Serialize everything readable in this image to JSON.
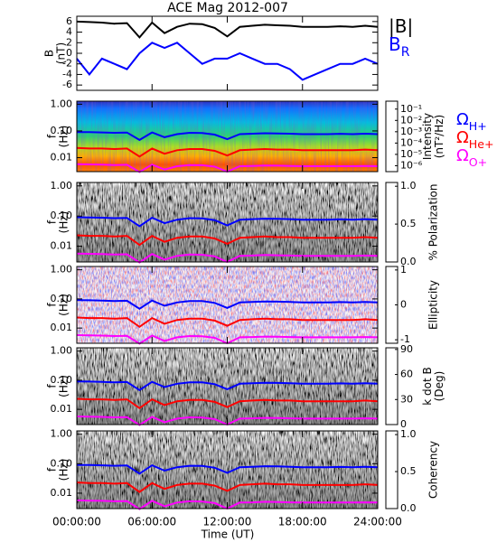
{
  "title": "ACE Mag 2012-007",
  "x_label": "Time (UT)",
  "chart_data": [
    {
      "type": "line",
      "y_label": [
        "B",
        "(nT)"
      ],
      "xlim": [
        0,
        24
      ],
      "ylim": [
        -7,
        7
      ],
      "yticks": [
        6,
        4,
        2,
        0,
        -2,
        -4,
        -6
      ],
      "x": [
        0,
        1,
        2,
        3,
        4,
        5,
        6,
        7,
        8,
        9,
        10,
        11,
        12,
        13,
        14,
        15,
        16,
        17,
        18,
        19,
        20,
        21,
        22,
        23,
        24
      ],
      "series": [
        {
          "name": "|B|",
          "color": "#000000",
          "values": [
            6.0,
            5.9,
            5.8,
            5.6,
            5.7,
            3.0,
            5.8,
            3.8,
            5.0,
            5.6,
            5.5,
            4.8,
            3.2,
            5.0,
            5.2,
            5.4,
            5.3,
            5.2,
            5.0,
            5.0,
            5.0,
            5.1,
            5.0,
            5.2,
            5.0
          ]
        },
        {
          "name": "B",
          "subscript": "R",
          "color": "#0000ff",
          "values": [
            -1,
            -4,
            -1,
            -2,
            -3,
            0,
            2,
            1,
            2,
            0,
            -2,
            -1,
            -1,
            0,
            -1,
            -2,
            -2,
            -3,
            -5,
            -4,
            -3,
            -2,
            -2,
            -1,
            -2
          ]
        }
      ]
    },
    {
      "type": "spectrogram",
      "y_label": [
        "f",
        "(Hz)"
      ],
      "log": true,
      "xlim": [
        0,
        24
      ],
      "ylim": [
        0.003,
        1.3
      ],
      "yticks": [
        {
          "value": 1,
          "label": "1.00"
        },
        {
          "value": 0.1,
          "label": "0.10"
        },
        {
          "value": 0.01,
          "label": "0.01"
        }
      ],
      "colorbar": {
        "label": [
          "Intensity",
          "(nT²/Hz)"
        ],
        "colormap": "rainbow",
        "log": true,
        "clim": [
          3e-07,
          0.5
        ],
        "ticks": [
          {
            "value": 0.1,
            "label": "10⁻¹"
          },
          {
            "value": 0.01,
            "label": "10⁻²"
          },
          {
            "value": 0.001,
            "label": "10⁻³"
          },
          {
            "value": 0.0001,
            "label": "10⁻⁴"
          },
          {
            "value": 1e-05,
            "label": "10⁻⁵"
          },
          {
            "value": 1e-06,
            "label": "10⁻⁶"
          }
        ]
      },
      "x": [
        0,
        1,
        2,
        3,
        4,
        5,
        6,
        7,
        8,
        9,
        10,
        11,
        12,
        13,
        14,
        15,
        16,
        17,
        18,
        19,
        20,
        21,
        22,
        23,
        24
      ],
      "series": [
        {
          "name": "Ω",
          "subscript": "H+",
          "color": "#0000ff",
          "values": [
            0.091,
            0.09,
            0.088,
            0.085,
            0.087,
            0.046,
            0.088,
            0.058,
            0.076,
            0.085,
            0.084,
            0.073,
            0.049,
            0.076,
            0.079,
            0.082,
            0.081,
            0.079,
            0.076,
            0.076,
            0.076,
            0.078,
            0.076,
            0.079,
            0.076
          ]
        },
        {
          "name": "Ω",
          "subscript": "He+",
          "color": "#ff0000",
          "values": [
            0.023,
            0.022,
            0.022,
            0.021,
            0.022,
            0.011,
            0.022,
            0.014,
            0.019,
            0.021,
            0.021,
            0.018,
            0.012,
            0.019,
            0.02,
            0.021,
            0.02,
            0.02,
            0.019,
            0.019,
            0.019,
            0.019,
            0.019,
            0.02,
            0.019
          ]
        },
        {
          "name": "Ω",
          "subscript": "O+",
          "color": "#ff00ff",
          "values": [
            0.0057,
            0.0056,
            0.0055,
            0.0053,
            0.0054,
            0.0029,
            0.0055,
            0.0036,
            0.0048,
            0.0053,
            0.0052,
            0.0046,
            0.003,
            0.0048,
            0.0049,
            0.0051,
            0.005,
            0.0049,
            0.0048,
            0.0048,
            0.0048,
            0.0048,
            0.0048,
            0.0049,
            0.0048
          ]
        }
      ]
    },
    {
      "type": "spectrogram",
      "y_label": [
        "f",
        "(Hz)"
      ],
      "log": true,
      "xlim": [
        0,
        24
      ],
      "ylim": [
        0.003,
        1.3
      ],
      "yticks": [
        {
          "value": 1,
          "label": "1.00"
        },
        {
          "value": 0.1,
          "label": "0.10"
        },
        {
          "value": 0.01,
          "label": "0.01"
        }
      ],
      "colorbar": {
        "label": [
          "% Polarization"
        ],
        "colormap": "gray_r",
        "log": false,
        "clim": [
          0,
          1.05
        ],
        "ticks": [
          {
            "value": 1,
            "label": "1.0"
          },
          {
            "value": 0.5,
            "label": "0.5"
          },
          {
            "value": 0,
            "label": "0.0"
          }
        ]
      }
    },
    {
      "type": "spectrogram",
      "y_label": [
        "f",
        "(Hz)"
      ],
      "log": true,
      "xlim": [
        0,
        24
      ],
      "ylim": [
        0.003,
        1.3
      ],
      "yticks": [
        {
          "value": 1,
          "label": "1.00"
        },
        {
          "value": 0.1,
          "label": "0.10"
        },
        {
          "value": 0.01,
          "label": "0.01"
        }
      ],
      "colorbar": {
        "label": [
          "Ellipticity"
        ],
        "colormap": "bwr",
        "log": false,
        "clim": [
          -1.1,
          1.1
        ],
        "ticks": [
          1,
          0,
          -1
        ]
      }
    },
    {
      "type": "spectrogram",
      "y_label": [
        "f",
        "(Hz)"
      ],
      "log": true,
      "xlim": [
        0,
        24
      ],
      "ylim": [
        0.003,
        1.3
      ],
      "yticks": [
        {
          "value": 1,
          "label": "1.00"
        },
        {
          "value": 0.1,
          "label": "0.10"
        },
        {
          "value": 0.01,
          "label": "0.01"
        }
      ],
      "colorbar": {
        "label": [
          "k dot B",
          "(Deg)"
        ],
        "colormap": "gray_r",
        "log": false,
        "clim": [
          0,
          92
        ],
        "ticks": [
          90,
          60,
          30,
          0
        ]
      }
    },
    {
      "type": "spectrogram",
      "y_label": [
        "f",
        "(Hz)"
      ],
      "log": true,
      "xlim": [
        0,
        24
      ],
      "ylim": [
        0.003,
        1.3
      ],
      "yticks": [
        {
          "value": 1,
          "label": "1.00"
        },
        {
          "value": 0.1,
          "label": "0.10"
        },
        {
          "value": 0.01,
          "label": "0.01"
        }
      ],
      "colorbar": {
        "label": [
          "Coherency"
        ],
        "colormap": "gray_r",
        "log": false,
        "clim": [
          0,
          1.05
        ],
        "ticks": [
          {
            "value": 1,
            "label": "1.0"
          },
          {
            "value": 0.5,
            "label": "0.5"
          },
          {
            "value": 0,
            "label": "0.0"
          }
        ]
      },
      "xticks": [
        {
          "value": 0,
          "label": "00:00:00"
        },
        {
          "value": 6,
          "label": "06:00:00"
        },
        {
          "value": 12,
          "label": "12:00:00"
        },
        {
          "value": 18,
          "label": "18:00:00"
        },
        {
          "value": 24,
          "label": "24:00:00"
        }
      ]
    }
  ]
}
